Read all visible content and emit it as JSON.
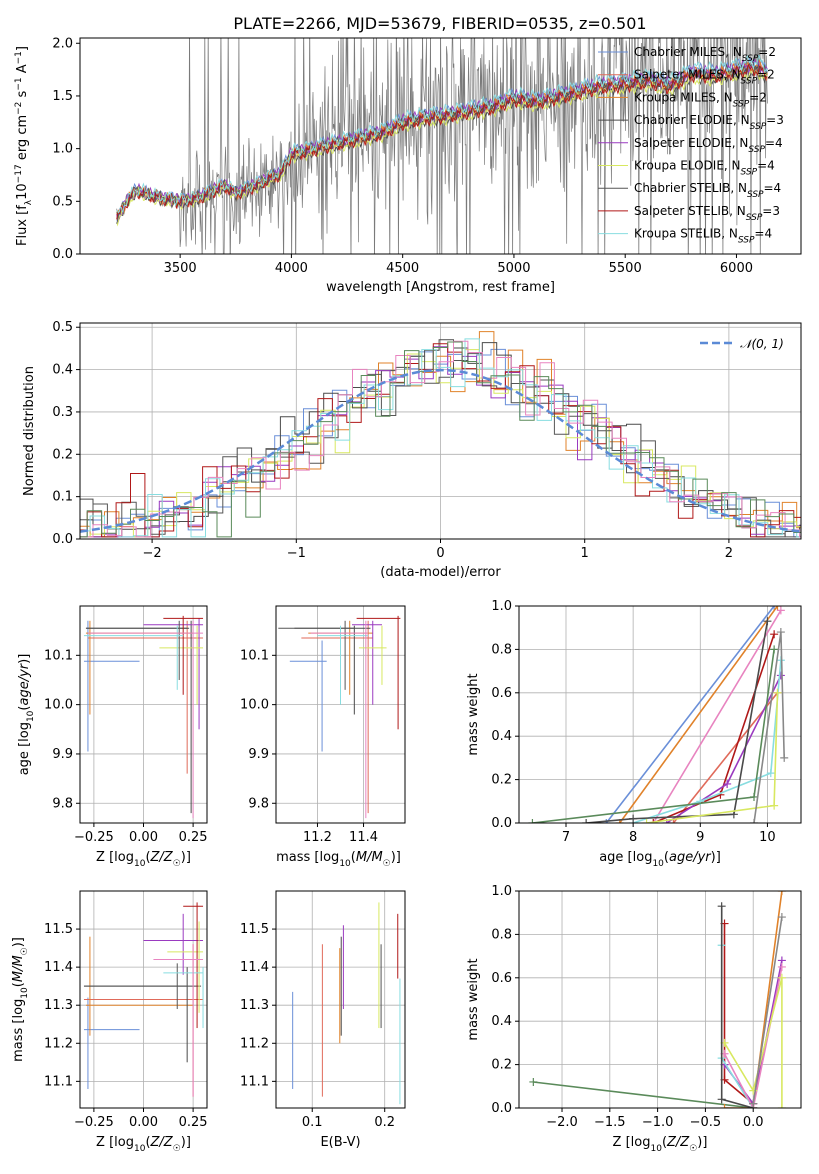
{
  "title": "PLATE=2266, MJD=53679, FIBERID=0535, z=0.501",
  "colors": {
    "Chabrier MILES": "#6a8fd8",
    "Salpeter MILES": "#e06a5a",
    "Kroupa MILES": "#e0822a",
    "Chabrier ELODIE": "#4a4a4a",
    "Salpeter ELODIE": "#9a3ac0",
    "Kroupa ELODIE": "#d8e860",
    "Chabrier STELIB": "#555555",
    "Salpeter STELIB": "#b01818",
    "Kroupa STELIB": "#88dde0",
    "extra_pink": "#e884c0",
    "extra_green": "#5a8a5a",
    "extra_grey": "#888888",
    "gauss": "#5b8ad6"
  },
  "chart_data": [
    {
      "type": "line",
      "id": "spectrum",
      "xlabel": "wavelength [Angstrom, rest frame]",
      "ylabel": "Flux [f_λ 10^-17 erg cm^-2 s^-1 A^-1]",
      "xlim": [
        3050,
        6290
      ],
      "ylim": [
        0,
        2.05
      ],
      "xticks": [
        "3500",
        "4000",
        "4500",
        "5000",
        "5500",
        "6000"
      ],
      "yticks": [
        "0.0",
        "0.5",
        "1.0",
        "1.5",
        "2.0"
      ],
      "grid": false,
      "legend_position": "top-right",
      "legend": [
        {
          "name": "Chabrier MILES",
          "n": "2"
        },
        {
          "name": "Salpeter MILES",
          "n": "2"
        },
        {
          "name": "Kroupa MILES",
          "n": "2"
        },
        {
          "name": "Chabrier ELODIE",
          "n": "3"
        },
        {
          "name": "Salpeter ELODIE",
          "n": "4"
        },
        {
          "name": "Kroupa ELODIE",
          "n": "4"
        },
        {
          "name": "Chabrier STELIB",
          "n": "4"
        },
        {
          "name": "Salpeter STELIB",
          "n": "3"
        },
        {
          "name": "Kroupa STELIB",
          "n": "4"
        }
      ],
      "model_continuum": {
        "x": [
          3220,
          3260,
          3300,
          3340,
          3380,
          3420,
          3460,
          3500,
          3550,
          3600,
          3650,
          3700,
          3750,
          3800,
          3850,
          3900,
          3950,
          4000,
          4100,
          4200,
          4300,
          4400,
          4500,
          4600,
          4700,
          4800,
          4900,
          5000,
          5100,
          5200,
          5300,
          5400,
          5500,
          5600,
          5700,
          5800,
          5900,
          6000,
          6100,
          6130
        ],
        "y": [
          0.35,
          0.5,
          0.6,
          0.58,
          0.55,
          0.53,
          0.52,
          0.5,
          0.52,
          0.55,
          0.6,
          0.65,
          0.58,
          0.62,
          0.66,
          0.72,
          0.76,
          0.95,
          1.0,
          1.05,
          1.1,
          1.15,
          1.25,
          1.3,
          1.32,
          1.36,
          1.4,
          1.48,
          1.45,
          1.5,
          1.55,
          1.6,
          1.62,
          1.65,
          1.6,
          1.72,
          1.7,
          1.75,
          1.78,
          1.72
        ]
      }
    },
    {
      "type": "histogram",
      "id": "residuals",
      "xlabel": "(data-model)/error",
      "ylabel": "Normed distribution",
      "xlim": [
        -2.5,
        2.5
      ],
      "ylim": [
        0,
        0.51
      ],
      "xticks": [
        "−2",
        "−1",
        "0",
        "1",
        "2"
      ],
      "yticks": [
        "0.0",
        "0.1",
        "0.2",
        "0.3",
        "0.4",
        "0.5"
      ],
      "grid": true,
      "legend_position": "top-right",
      "gaussian_label": "𝒩(0, 1)",
      "bin_width": 0.1
    },
    {
      "type": "scatter",
      "id": "age_vs_Z",
      "xlabel": "Z [log10(Z/Z☉)]",
      "ylabel": "age  [log10(age/yr)]",
      "xlim": [
        -0.32,
        0.32
      ],
      "ylim": [
        9.76,
        10.2
      ],
      "xticks": [
        "−0.25",
        "0.00",
        "0.25"
      ],
      "yticks": [
        "9.8",
        "9.9",
        "10.0",
        "10.1"
      ],
      "grid": true
    },
    {
      "type": "scatter",
      "id": "age_vs_mass",
      "xlabel": "mass [log10(M/M☉)]",
      "ylabel": "",
      "xlim": [
        11.02,
        11.58
      ],
      "ylim": [
        9.76,
        10.2
      ],
      "xticks": [
        "11.2",
        "11.4"
      ],
      "yticks": [
        "9.8",
        "9.9",
        "10.0",
        "10.1"
      ],
      "grid": true
    },
    {
      "type": "line",
      "id": "weight_vs_age",
      "xlabel": "age  [log10(age/yr)]",
      "ylabel": "mass weight",
      "xlim": [
        6.3,
        10.5
      ],
      "ylim": [
        0,
        1.0
      ],
      "xticks": [
        "7",
        "8",
        "9",
        "10"
      ],
      "yticks": [
        "0.0",
        "0.2",
        "0.4",
        "0.6",
        "0.8",
        "1.0"
      ],
      "grid": true
    },
    {
      "type": "scatter",
      "id": "mass_vs_Z",
      "xlabel": "Z [log10(Z/Z☉)]",
      "ylabel": "mass [log10(M/M☉)]",
      "xlim": [
        -0.32,
        0.32
      ],
      "ylim": [
        11.03,
        11.6
      ],
      "xticks": [
        "−0.25",
        "0.00",
        "0.25"
      ],
      "yticks": [
        "11.1",
        "11.2",
        "11.3",
        "11.4",
        "11.5"
      ],
      "grid": true
    },
    {
      "type": "scatter",
      "id": "mass_vs_EBV",
      "xlabel": "E(B-V)",
      "ylabel": "",
      "xlim": [
        0.05,
        0.228
      ],
      "ylim": [
        11.03,
        11.6
      ],
      "xticks": [
        "0.1",
        "0.2"
      ],
      "yticks": [
        "11.1",
        "11.2",
        "11.3",
        "11.4",
        "11.5"
      ],
      "grid": true
    },
    {
      "type": "line",
      "id": "weight_vs_Z",
      "xlabel": "Z [log10(Z/Z☉)]",
      "ylabel": "mass weight",
      "xlim": [
        -2.45,
        0.5
      ],
      "ylim": [
        0,
        1.0
      ],
      "xticks": [
        "−2.0",
        "−1.5",
        "−1.0",
        "−0.5",
        "0.0"
      ],
      "yticks": [
        "0.0",
        "0.2",
        "0.4",
        "0.6",
        "0.8",
        "1.0"
      ],
      "grid": true
    }
  ]
}
